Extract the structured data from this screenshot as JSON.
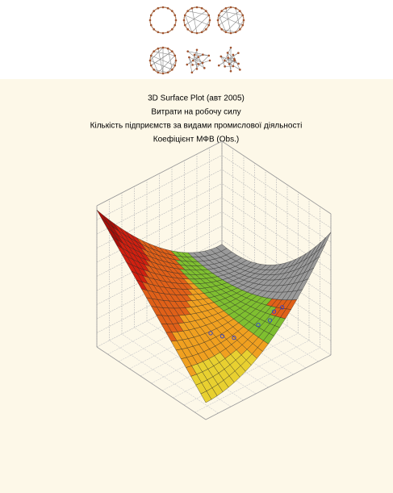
{
  "chart_data": {
    "type": "surface",
    "title": "3D Surface Plot (авт 2005)",
    "subtitle_lines": [
      "Витрати на робочу силу",
      "Кількість підприємств за видами промислової діяльності",
      "Коефіцієнт МФВ (Obs.)"
    ]
  }
}
